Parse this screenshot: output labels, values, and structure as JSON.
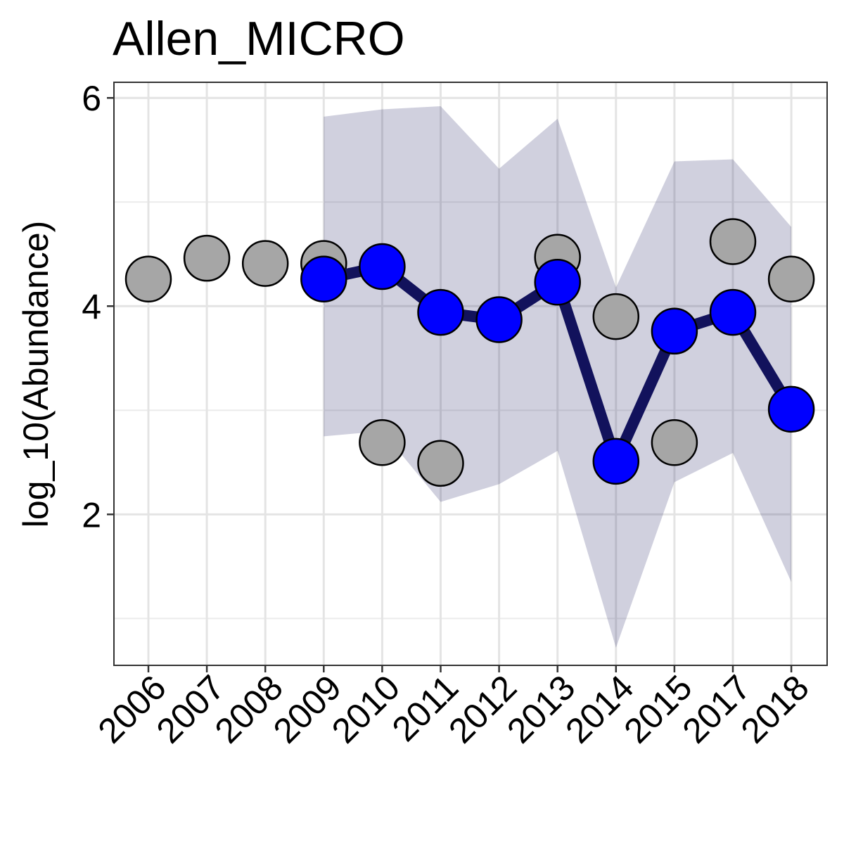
{
  "chart_data": {
    "type": "line",
    "title": "Allen_MICRO",
    "xlabel": "",
    "ylabel": "log_10(Abundance)",
    "categories": [
      "2006",
      "2007",
      "2008",
      "2009",
      "2010",
      "2011",
      "2012",
      "2013",
      "2014",
      "2015",
      "2017",
      "2018"
    ],
    "ylim": [
      0.55,
      6.15
    ],
    "yticks": [
      2,
      4,
      6
    ],
    "grid": true,
    "observed": {
      "color": "#a6a6a6",
      "values": [
        4.26,
        4.46,
        4.41,
        4.41,
        2.69,
        2.49,
        null,
        4.47,
        3.9,
        2.69,
        4.62,
        4.26
      ]
    },
    "estimate": {
      "line_color": "#12125c",
      "point_color": "#0000ff",
      "x": [
        "2009",
        "2010",
        "2011",
        "2012",
        "2013",
        "2014",
        "2015",
        "2017",
        "2018"
      ],
      "values": [
        4.26,
        4.38,
        3.94,
        3.87,
        4.23,
        2.51,
        3.76,
        3.94,
        3.01
      ]
    },
    "interval": {
      "color": "#12125c",
      "x": [
        "2009",
        "2010",
        "2011",
        "2012",
        "2013",
        "2014",
        "2015",
        "2017",
        "2018"
      ],
      "upper": [
        5.82,
        5.89,
        5.92,
        5.32,
        5.8,
        4.18,
        5.39,
        5.41,
        4.76
      ],
      "lower": [
        2.75,
        2.8,
        2.12,
        2.29,
        2.61,
        0.72,
        2.31,
        2.59,
        1.35
      ]
    }
  }
}
